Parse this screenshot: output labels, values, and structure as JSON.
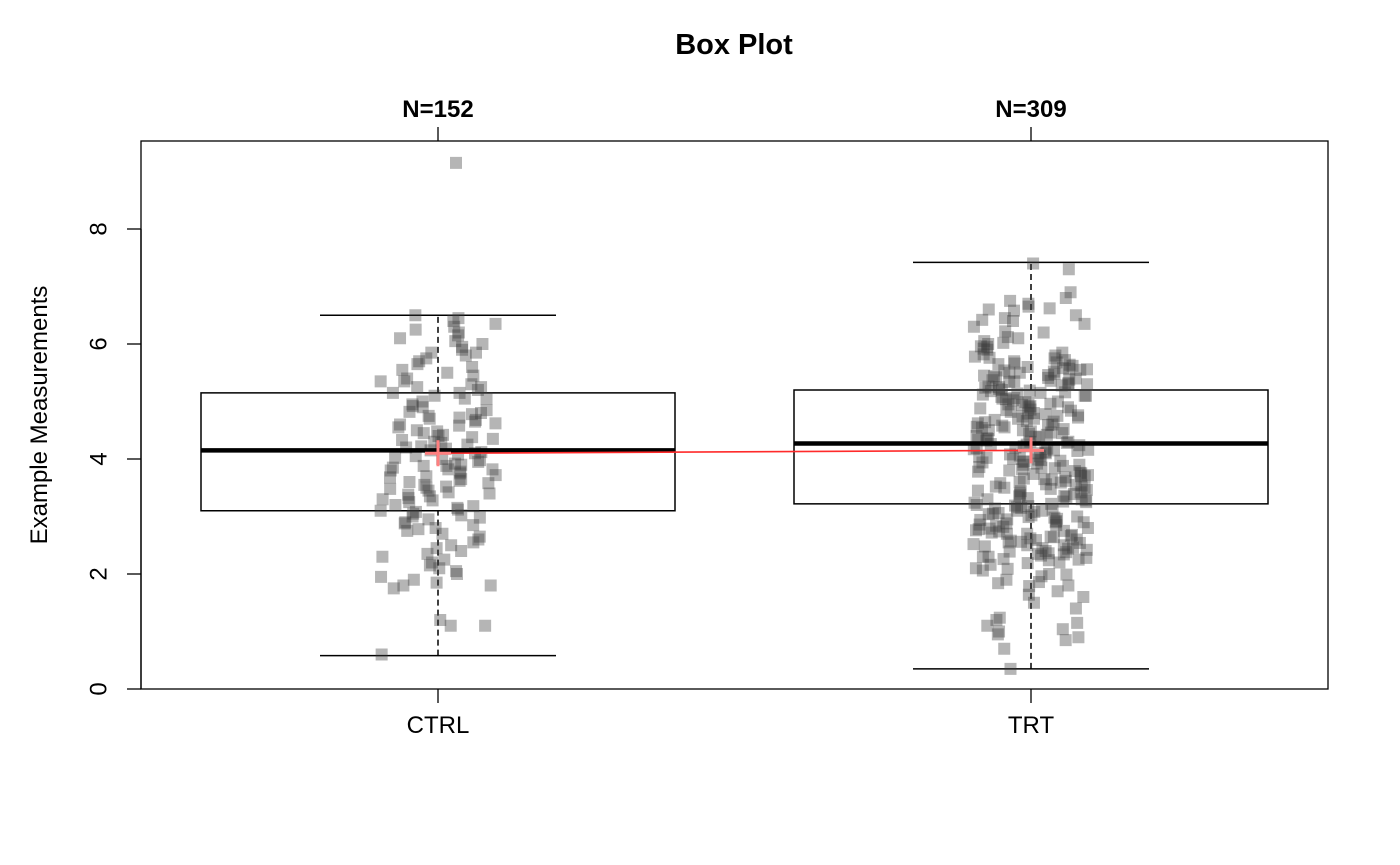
{
  "chart_data": {
    "type": "box",
    "title": "Box Plot",
    "ylabel": "Example Measurements",
    "xlabel": "",
    "ylim": [
      0,
      9.5
    ],
    "yticks": [
      0,
      2,
      4,
      6,
      8
    ],
    "grid": false,
    "categories": [
      "CTRL",
      "TRT"
    ],
    "group_counts": [
      "N=152",
      "N=309"
    ],
    "boxes": [
      {
        "name": "CTRL",
        "whisker_low": 0.58,
        "q1": 3.1,
        "median": 4.15,
        "q3": 5.15,
        "whisker_high": 6.5,
        "mean": 4.1
      },
      {
        "name": "TRT",
        "whisker_low": 0.35,
        "q1": 3.22,
        "median": 4.27,
        "q3": 5.2,
        "whisker_high": 7.42,
        "mean": 4.15
      }
    ],
    "mean_line_color": "#ff2a2a",
    "mean_marker_color": "#ff7f7f",
    "points": {
      "CTRL": [
        9.15,
        6.5,
        6.4,
        6.35,
        6.2,
        6.15,
        6.1,
        6.0,
        5.9,
        5.85,
        5.8,
        5.7,
        5.6,
        5.55,
        5.5,
        5.4,
        5.35,
        5.3,
        5.25,
        5.2,
        5.15,
        5.1,
        5.05,
        5.0,
        4.95,
        4.9,
        4.85,
        4.8,
        4.75,
        4.7,
        4.65,
        4.6,
        4.55,
        4.5,
        4.45,
        4.4,
        4.35,
        4.3,
        4.25,
        4.2,
        4.15,
        4.12,
        4.1,
        4.05,
        4.0,
        3.95,
        3.9,
        3.85,
        3.82,
        3.8,
        3.75,
        3.7,
        3.65,
        3.6,
        3.55,
        3.5,
        3.45,
        3.4,
        3.35,
        3.3,
        3.25,
        3.2,
        3.15,
        3.1,
        3.05,
        3.0,
        2.95,
        2.9,
        2.85,
        2.8,
        2.7,
        2.6,
        2.5,
        2.4,
        2.3,
        2.25,
        2.2,
        2.1,
        2.0,
        1.9,
        1.85,
        1.8,
        1.8,
        1.2,
        1.1,
        1.1,
        0.6,
        6.3,
        6.05,
        5.75,
        5.45,
        5.15,
        4.92,
        4.78,
        4.62,
        4.48,
        4.33,
        4.18,
        4.08,
        3.98,
        3.88,
        3.78,
        3.68,
        3.58,
        3.48,
        3.38,
        3.28,
        3.18,
        3.08,
        2.98,
        2.75,
        2.55,
        2.35,
        2.15,
        1.95,
        5.65,
        5.95,
        4.68,
        4.38,
        3.72,
        3.42,
        2.65,
        6.25,
        5.35,
        4.82,
        4.28,
        3.92,
        3.62,
        3.12,
        2.45,
        2.05,
        5.05,
        4.58,
        4.02,
        3.52,
        2.88,
        6.45,
        5.85,
        5.25,
        4.72,
        4.22,
        3.88,
        3.32,
        2.78,
        1.75,
        4.42,
        3.82,
        3.02
      ],
      "TRT": [
        7.4,
        7.3,
        6.8,
        6.75,
        6.7,
        6.65,
        6.6,
        6.5,
        6.4,
        6.3,
        6.2,
        6.1,
        6.05,
        6.0,
        5.95,
        5.9,
        5.85,
        5.8,
        5.75,
        5.7,
        5.65,
        5.6,
        5.55,
        5.5,
        5.45,
        5.4,
        5.35,
        5.3,
        5.25,
        5.2,
        5.15,
        5.1,
        5.05,
        5.0,
        4.95,
        4.9,
        4.85,
        4.8,
        4.75,
        4.7,
        4.65,
        4.6,
        4.55,
        4.5,
        4.45,
        4.4,
        4.35,
        4.3,
        4.25,
        4.2,
        4.15,
        4.1,
        4.05,
        4.0,
        3.95,
        3.9,
        3.85,
        3.8,
        3.75,
        3.7,
        3.65,
        3.6,
        3.55,
        3.5,
        3.45,
        3.4,
        3.35,
        3.3,
        3.25,
        3.2,
        3.15,
        3.1,
        3.05,
        3.0,
        2.95,
        2.9,
        2.85,
        2.8,
        2.75,
        2.7,
        2.65,
        2.6,
        2.55,
        2.5,
        2.45,
        2.4,
        2.35,
        2.3,
        2.25,
        2.2,
        2.1,
        2.0,
        1.9,
        1.8,
        1.7,
        1.6,
        1.5,
        1.4,
        1.2,
        1.1,
        1.0,
        0.9,
        0.85,
        0.7,
        0.35,
        5.62,
        5.58,
        5.52,
        5.48,
        5.42,
        5.38,
        5.32,
        5.28,
        5.22,
        5.18,
        5.12,
        5.08,
        5.02,
        4.98,
        4.92,
        4.88,
        4.82,
        4.78,
        4.72,
        4.68,
        4.62,
        4.58,
        4.52,
        4.48,
        4.42,
        4.38,
        4.32,
        4.28,
        4.22,
        4.18,
        4.12,
        4.08,
        4.02,
        3.98,
        3.92,
        3.88,
        3.82,
        3.78,
        3.72,
        3.68,
        3.62,
        3.58,
        3.52,
        3.48,
        3.42,
        3.38,
        3.32,
        3.28,
        3.22,
        3.18,
        3.12,
        3.08,
        3.02,
        2.98,
        2.92,
        2.88,
        2.82,
        2.78,
        2.72,
        2.68,
        2.62,
        2.58,
        2.52,
        2.48,
        2.42,
        2.38,
        2.32,
        2.28,
        5.72,
        5.68,
        5.64,
        5.56,
        5.46,
        5.36,
        5.26,
        5.16,
        5.06,
        4.96,
        4.86,
        4.76,
        4.66,
        4.56,
        4.46,
        4.36,
        4.26,
        4.16,
        4.06,
        3.96,
        3.86,
        3.76,
        3.66,
        3.56,
        3.46,
        3.36,
        3.26,
        3.16,
        3.06,
        2.96,
        2.86,
        2.76,
        2.66,
        2.56,
        2.46,
        2.36,
        2.26,
        2.16,
        2.06,
        1.96,
        1.86,
        6.62,
        6.42,
        6.22,
        6.02,
        5.82,
        5.44,
        5.24,
        5.04,
        4.84,
        4.64,
        4.44,
        4.24,
        4.04,
        3.84,
        3.64,
        3.44,
        3.24,
        3.04,
        2.84,
        2.64,
        2.44,
        2.24,
        1.84,
        1.64,
        1.24,
        1.04,
        5.78,
        5.54,
        5.34,
        5.14,
        4.94,
        4.74,
        4.54,
        4.34,
        4.14,
        3.94,
        3.74,
        3.54,
        3.34,
        3.14,
        2.94,
        2.74,
        2.54,
        2.34,
        6.58,
        6.35,
        6.12,
        5.92,
        5.66,
        5.41,
        5.19,
        4.99,
        4.79,
        4.59,
        4.39,
        4.19,
        3.99,
        3.79,
        3.59,
        3.39,
        3.19,
        2.99,
        2.79,
        2.59,
        2.39,
        2.19,
        1.99,
        1.79,
        5.5,
        5.3,
        5.1,
        4.9,
        4.7,
        4.5,
        4.3,
        4.1,
        3.9,
        3.7,
        3.5,
        3.3,
        3.1,
        2.9,
        2.7,
        2.5,
        2.3,
        6.9,
        6.45,
        5.96,
        5.76,
        5.57,
        5.37,
        4.17,
        3.97,
        2.09,
        1.15,
        0.95
      ]
    }
  }
}
